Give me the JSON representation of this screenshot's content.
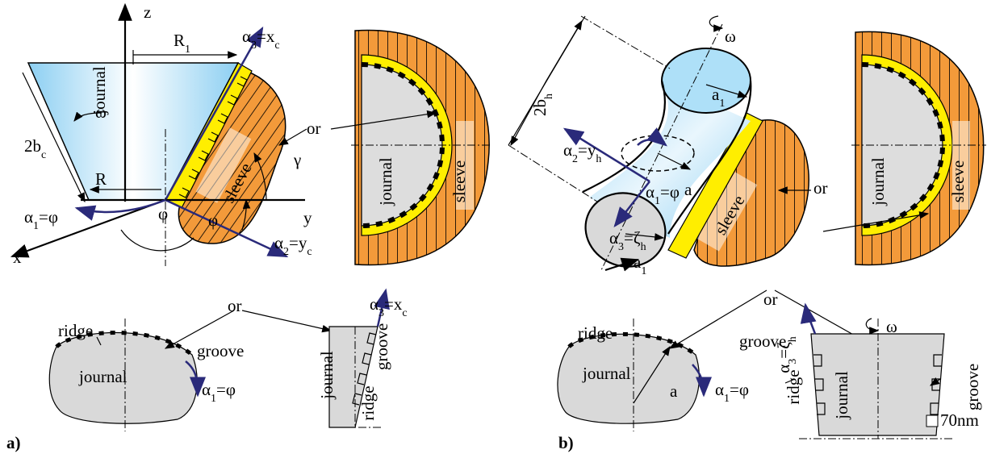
{
  "labels": [
    "z",
    [
      "R",
      "1"
    ],
    [
      "α",
      "3",
      "=x",
      "c"
    ],
    "ω",
    "journal",
    [
      "2b",
      "c"
    ],
    "R",
    [
      "α",
      "1",
      "=φ"
    ],
    "φ",
    "γ",
    "sleeve",
    "or",
    "y",
    "x",
    [
      "α",
      "2",
      "=y",
      "c"
    ],
    "φ",
    "journal",
    "sleeve",
    "ridge",
    "or",
    "groove",
    "journal",
    [
      "α",
      "1",
      "=φ"
    ],
    [
      "α",
      "3",
      "=x",
      "c"
    ],
    "journal",
    "groove",
    "ridge",
    "a)",
    [
      "2b",
      "h"
    ],
    "ω",
    [
      "a",
      "1"
    ],
    [
      "α",
      "2",
      "=y",
      "h"
    ],
    [
      "α",
      "1",
      "=φ"
    ],
    "a",
    [
      "α",
      "3",
      "=ζ",
      "h"
    ],
    [
      "a",
      "1"
    ],
    "sleeve",
    "or",
    "journal",
    "sleeve",
    "or",
    "ridge",
    "groove",
    "journal",
    "a",
    [
      "α",
      "1",
      "=φ"
    ],
    [
      "α",
      "3",
      "=ζ",
      "h"
    ],
    "ω",
    "ridge",
    "journal",
    "groove",
    "70nm",
    "b)"
  ]
}
